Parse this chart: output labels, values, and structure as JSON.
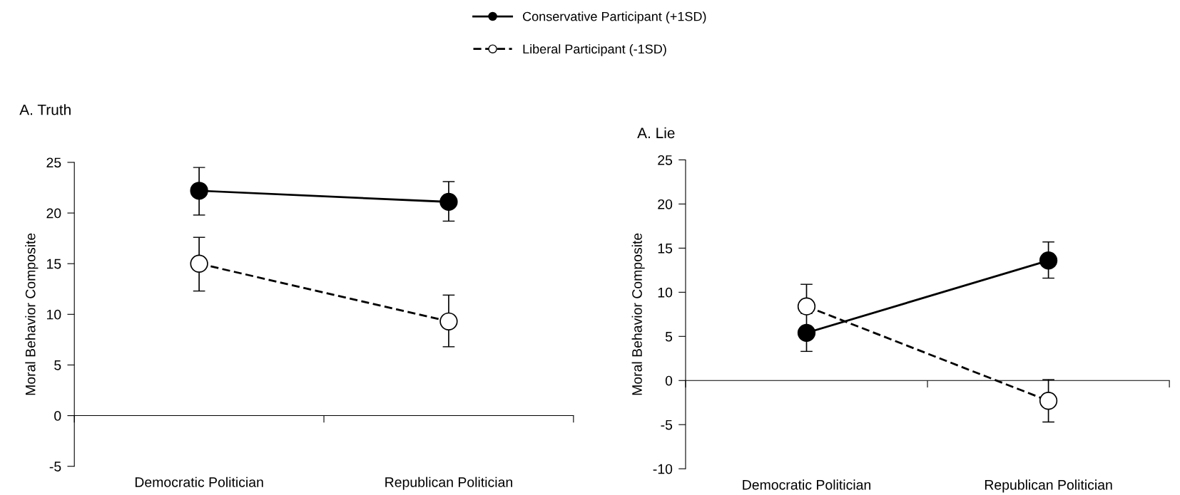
{
  "chart_data": [
    {
      "type": "line",
      "title": "A. Truth",
      "ylabel": "Moral Behavior Composite",
      "categories": [
        "Democratic Politician",
        "Republican Politician"
      ],
      "ylim": [
        -5,
        25
      ],
      "yticks": [
        -5,
        0,
        5,
        10,
        15,
        20,
        25
      ],
      "legend": "top",
      "marker": "circle",
      "series": [
        {
          "name": "Conservative Participant (+1SD)",
          "color": "#000000",
          "line_style": "solid",
          "values": [
            22.2,
            21.1
          ],
          "errors": [
            [
              19.8,
              24.5
            ],
            [
              19.2,
              23.1
            ]
          ]
        },
        {
          "name": "Liberal Participant (-1SD)",
          "color": "#000000",
          "line_style": "dashed",
          "values": [
            15.0,
            9.3
          ],
          "errors": [
            [
              12.3,
              17.6
            ],
            [
              6.8,
              11.9
            ]
          ]
        }
      ]
    },
    {
      "type": "line",
      "title": "A. Lie",
      "ylabel": "Moral Behavior Composite",
      "categories": [
        "Democratic Politician",
        "Republican Politician"
      ],
      "ylim": [
        -10,
        25
      ],
      "yticks": [
        -10,
        -5,
        0,
        5,
        10,
        15,
        20,
        25
      ],
      "marker": "circle",
      "series": [
        {
          "color": "#000000",
          "line_style": "solid",
          "values": [
            5.4,
            13.6
          ],
          "errors": [
            [
              3.3,
              7.6
            ],
            [
              11.6,
              15.7
            ]
          ]
        },
        {
          "color": "#000000",
          "line_style": "dashed",
          "values": [
            8.4,
            -2.3
          ],
          "errors": [
            [
              8.4,
              10.9
            ],
            [
              -4.7,
              0.1
            ]
          ]
        }
      ]
    }
  ]
}
